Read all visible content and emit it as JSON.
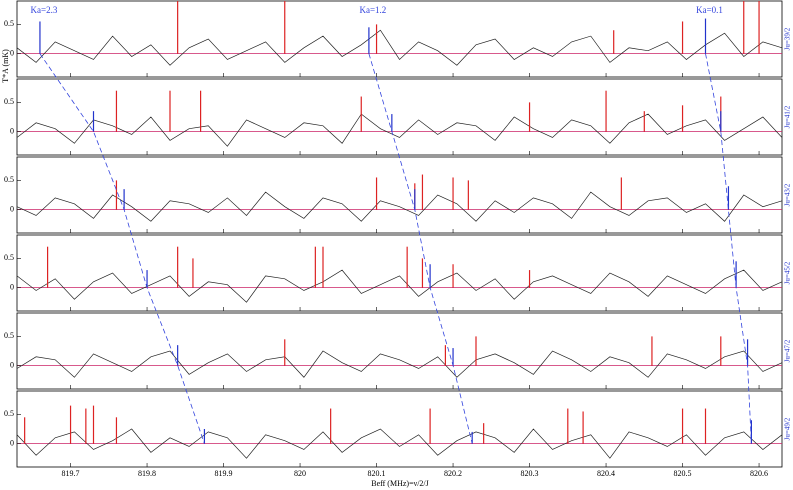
{
  "chart_data": [
    {
      "type": "line",
      "label": "Ju=39/2",
      "xlim": [
        819.63,
        820.63
      ],
      "ylim": [
        -0.4,
        0.9
      ],
      "yticks": [
        0,
        0.5
      ],
      "xticks": [
        819.7,
        819.8,
        819.9,
        820,
        820.1,
        820.2,
        820.3,
        820.4,
        820.5,
        820.6
      ],
      "x": [
        819.63,
        819.655,
        819.68,
        819.705,
        819.73,
        819.755,
        819.78,
        819.805,
        819.83,
        819.855,
        819.88,
        819.905,
        819.93,
        819.955,
        819.98,
        820.005,
        820.03,
        820.055,
        820.08,
        820.105,
        820.13,
        820.155,
        820.18,
        820.205,
        820.23,
        820.255,
        820.28,
        820.305,
        820.33,
        820.355,
        820.38,
        820.405,
        820.43,
        820.455,
        820.48,
        820.505,
        820.53,
        820.555,
        820.58,
        820.605,
        820.63
      ],
      "series": [
        {
          "color": "#222222",
          "values": [
            0.1,
            -0.15,
            0.2,
            0.05,
            -0.1,
            0.3,
            -0.05,
            0.15,
            -0.2,
            0.1,
            0.25,
            -0.1,
            0.05,
            0.2,
            -0.15,
            0.1,
            0.3,
            -0.05,
            0.15,
            0.4,
            -0.1,
            0.2,
            0.05,
            -0.2,
            0.15,
            0.25,
            -0.1,
            0.1,
            -0.05,
            0.2,
            0.3,
            -0.15,
            0.1,
            0.05,
            0.2,
            -0.1,
            0.15,
            0.35,
            -0.05,
            0.2,
            0.1
          ]
        },
        {
          "color": "#dd2222",
          "x": [
            819.84,
            819.98,
            820.1,
            820.41,
            820.5,
            820.58,
            820.6
          ],
          "values": [
            0.9,
            0.9,
            0.5,
            0.4,
            0.55,
            0.9,
            0.9
          ]
        },
        {
          "color": "#2233cc",
          "x": [
            819.66,
            820.09,
            820.53
          ],
          "values": [
            0.55,
            0.45,
            0.6
          ]
        }
      ]
    },
    {
      "type": "line",
      "label": "Ju=41/2",
      "xlim": [
        819.63,
        820.63
      ],
      "ylim": [
        -0.4,
        0.9
      ],
      "yticks": [
        0,
        0.5
      ],
      "xticks": [
        819.7,
        819.8,
        819.9,
        820,
        820.1,
        820.2,
        820.3,
        820.4,
        820.5,
        820.6
      ],
      "x": [
        819.63,
        819.655,
        819.68,
        819.705,
        819.73,
        819.755,
        819.78,
        819.805,
        819.83,
        819.855,
        819.88,
        819.905,
        819.93,
        819.955,
        819.98,
        820.005,
        820.03,
        820.055,
        820.08,
        820.105,
        820.13,
        820.155,
        820.18,
        820.205,
        820.23,
        820.255,
        820.28,
        820.305,
        820.33,
        820.355,
        820.38,
        820.405,
        820.43,
        820.455,
        820.48,
        820.505,
        820.53,
        820.555,
        820.58,
        820.605,
        820.63
      ],
      "series": [
        {
          "color": "#222222",
          "values": [
            -0.1,
            0.15,
            0.05,
            -0.2,
            0.2,
            0.1,
            -0.05,
            0.25,
            -0.15,
            0.05,
            0.1,
            -0.25,
            0.2,
            0.05,
            -0.1,
            0.15,
            0.1,
            -0.2,
            0.3,
            0.05,
            -0.1,
            0.2,
            -0.05,
            0.15,
            0.1,
            -0.15,
            0.25,
            0.05,
            -0.1,
            0.2,
            0.1,
            -0.2,
            0.15,
            0.3,
            -0.05,
            0.1,
            0.2,
            -0.15,
            0.05,
            0.25,
            -0.1
          ]
        },
        {
          "color": "#dd2222",
          "x": [
            819.76,
            819.83,
            819.87,
            820.08,
            820.3,
            820.4,
            820.45,
            820.5,
            820.55
          ],
          "values": [
            0.7,
            0.7,
            0.7,
            0.6,
            0.5,
            0.7,
            0.35,
            0.45,
            0.6
          ]
        },
        {
          "color": "#2233cc",
          "x": [
            819.73,
            820.12,
            820.55
          ],
          "values": [
            0.35,
            0.3,
            0.35
          ]
        }
      ]
    },
    {
      "type": "line",
      "label": "Ju=43/2",
      "xlim": [
        819.63,
        820.63
      ],
      "ylim": [
        -0.4,
        0.9
      ],
      "yticks": [
        0,
        0.5
      ],
      "xticks": [
        819.7,
        819.8,
        819.9,
        820,
        820.1,
        820.2,
        820.3,
        820.4,
        820.5,
        820.6
      ],
      "x": [
        819.63,
        819.655,
        819.68,
        819.705,
        819.73,
        819.755,
        819.78,
        819.805,
        819.83,
        819.855,
        819.88,
        819.905,
        819.93,
        819.955,
        819.98,
        820.005,
        820.03,
        820.055,
        820.08,
        820.105,
        820.13,
        820.155,
        820.18,
        820.205,
        820.23,
        820.255,
        820.28,
        820.305,
        820.33,
        820.355,
        820.38,
        820.405,
        820.43,
        820.455,
        820.48,
        820.505,
        820.53,
        820.555,
        820.58,
        820.605,
        820.63
      ],
      "series": [
        {
          "color": "#222222",
          "values": [
            0.05,
            -0.1,
            0.2,
            0.1,
            -0.15,
            0.25,
            0.05,
            -0.2,
            0.15,
            0.1,
            -0.05,
            0.2,
            -0.1,
            0.3,
            0.05,
            -0.15,
            0.2,
            0.1,
            -0.2,
            0.15,
            0.05,
            -0.1,
            0.25,
            0.1,
            -0.2,
            0.15,
            -0.05,
            0.2,
            0.1,
            -0.15,
            0.3,
            0.05,
            -0.1,
            0.15,
            0.2,
            -0.05,
            0.1,
            -0.2,
            0.25,
            0.05,
            0.15
          ]
        },
        {
          "color": "#dd2222",
          "x": [
            819.76,
            820.1,
            820.15,
            820.16,
            820.2,
            820.22,
            820.42
          ],
          "values": [
            0.5,
            0.55,
            0.45,
            0.6,
            0.55,
            0.5,
            0.55
          ]
        },
        {
          "color": "#2233cc",
          "x": [
            819.77,
            820.15,
            820.56
          ],
          "values": [
            0.35,
            0.35,
            0.4
          ]
        }
      ]
    },
    {
      "type": "line",
      "label": "Ju=45/2",
      "xlim": [
        819.63,
        820.63
      ],
      "ylim": [
        -0.4,
        0.9
      ],
      "yticks": [
        0,
        0.5
      ],
      "xticks": [
        819.7,
        819.8,
        819.9,
        820,
        820.1,
        820.2,
        820.3,
        820.4,
        820.5,
        820.6
      ],
      "x": [
        819.63,
        819.655,
        819.68,
        819.705,
        819.73,
        819.755,
        819.78,
        819.805,
        819.83,
        819.855,
        819.88,
        819.905,
        819.93,
        819.955,
        819.98,
        820.005,
        820.03,
        820.055,
        820.08,
        820.105,
        820.13,
        820.155,
        820.18,
        820.205,
        820.23,
        820.255,
        820.28,
        820.305,
        820.33,
        820.355,
        820.38,
        820.405,
        820.43,
        820.455,
        820.48,
        820.505,
        820.53,
        820.555,
        820.58,
        820.605,
        820.63
      ],
      "series": [
        {
          "color": "#222222",
          "values": [
            0.2,
            -0.05,
            0.15,
            -0.2,
            0.1,
            0.25,
            -0.1,
            0.05,
            0.2,
            -0.15,
            0.1,
            0.05,
            -0.25,
            0.2,
            0.15,
            -0.05,
            0.1,
            0.3,
            -0.1,
            0.05,
            0.2,
            -0.15,
            0.1,
            0.25,
            -0.05,
            0.15,
            -0.2,
            0.1,
            0.2,
            0.05,
            -0.1,
            0.25,
            0.1,
            -0.15,
            0.2,
            0.05,
            -0.1,
            0.15,
            0.3,
            -0.05,
            0.1
          ]
        },
        {
          "color": "#dd2222",
          "x": [
            819.67,
            819.84,
            819.86,
            820.02,
            820.03,
            820.14,
            820.16,
            820.2,
            820.3
          ],
          "values": [
            0.7,
            0.7,
            0.5,
            0.7,
            0.7,
            0.7,
            0.5,
            0.4,
            0.3
          ]
        },
        {
          "color": "#2233cc",
          "x": [
            819.8,
            820.17,
            820.57
          ],
          "values": [
            0.3,
            0.4,
            0.45
          ]
        }
      ]
    },
    {
      "type": "line",
      "label": "Ju=47/2",
      "xlim": [
        819.63,
        820.63
      ],
      "ylim": [
        -0.4,
        0.9
      ],
      "yticks": [
        0,
        0.5
      ],
      "xticks": [
        819.7,
        819.8,
        819.9,
        820,
        820.1,
        820.2,
        820.3,
        820.4,
        820.5,
        820.6
      ],
      "x": [
        819.63,
        819.655,
        819.68,
        819.705,
        819.73,
        819.755,
        819.78,
        819.805,
        819.83,
        819.855,
        819.88,
        819.905,
        819.93,
        819.955,
        819.98,
        820.005,
        820.03,
        820.055,
        820.08,
        820.105,
        820.13,
        820.155,
        820.18,
        820.205,
        820.23,
        820.255,
        820.28,
        820.305,
        820.33,
        820.355,
        820.38,
        820.405,
        820.43,
        820.455,
        820.48,
        820.505,
        820.53,
        820.555,
        820.58,
        820.605,
        820.63
      ],
      "series": [
        {
          "color": "#222222",
          "values": [
            -0.05,
            0.15,
            0.1,
            -0.2,
            0.2,
            0.05,
            -0.1,
            0.15,
            0.25,
            -0.15,
            0.05,
            0.2,
            -0.1,
            0.1,
            0.15,
            -0.2,
            0.25,
            0.05,
            -0.1,
            0.2,
            0.1,
            -0.05,
            0.15,
            -0.2,
            0.1,
            0.2,
            0.05,
            -0.15,
            0.25,
            0.1,
            -0.1,
            0.15,
            0.05,
            -0.2,
            0.2,
            0.1,
            -0.05,
            0.15,
            0.25,
            -0.1,
            0.05
          ]
        },
        {
          "color": "#dd2222",
          "x": [
            819.98,
            820.19,
            820.23,
            820.46,
            820.55
          ],
          "values": [
            0.45,
            0.35,
            0.5,
            0.5,
            0.5
          ]
        },
        {
          "color": "#2233cc",
          "x": [
            819.84,
            820.2,
            820.585
          ],
          "values": [
            0.35,
            0.3,
            0.45
          ]
        }
      ]
    },
    {
      "type": "line",
      "label": "Ju=49/2",
      "xlim": [
        819.63,
        820.63
      ],
      "ylim": [
        -0.4,
        0.9
      ],
      "yticks": [
        0,
        0.5
      ],
      "xticks": [
        819.7,
        819.8,
        819.9,
        820,
        820.1,
        820.2,
        820.3,
        820.4,
        820.5,
        820.6
      ],
      "x": [
        819.63,
        819.655,
        819.68,
        819.705,
        819.73,
        819.755,
        819.78,
        819.805,
        819.83,
        819.855,
        819.88,
        819.905,
        819.93,
        819.955,
        819.98,
        820.005,
        820.03,
        820.055,
        820.08,
        820.105,
        820.13,
        820.155,
        820.18,
        820.205,
        820.23,
        820.255,
        820.28,
        820.305,
        820.33,
        820.355,
        820.38,
        820.405,
        820.43,
        820.455,
        820.48,
        820.505,
        820.53,
        820.555,
        820.58,
        820.605,
        820.63
      ],
      "series": [
        {
          "color": "#222222",
          "values": [
            0.15,
            -0.2,
            0.1,
            0.2,
            -0.1,
            0.05,
            0.25,
            -0.15,
            0.1,
            -0.05,
            0.2,
            0.1,
            -0.25,
            0.15,
            0.05,
            -0.1,
            0.2,
            -0.15,
            0.1,
            0.25,
            -0.05,
            0.15,
            -0.2,
            0.05,
            0.2,
            0.1,
            -0.15,
            0.25,
            -0.1,
            0.05,
            0.15,
            -0.25,
            0.2,
            0.1,
            -0.05,
            0.15,
            -0.2,
            0.1,
            0.2,
            -0.1,
            0.15
          ]
        },
        {
          "color": "#dd2222",
          "x": [
            819.64,
            819.7,
            819.72,
            819.73,
            819.76,
            820.04,
            820.17,
            820.24,
            820.35,
            820.37,
            820.5,
            820.53
          ],
          "values": [
            0.45,
            0.65,
            0.6,
            0.65,
            0.45,
            0.6,
            0.6,
            0.35,
            0.6,
            0.55,
            0.6,
            0.6
          ]
        },
        {
          "color": "#2233cc",
          "x": [
            819.875,
            820.225,
            820.59
          ],
          "values": [
            0.25,
            0.2,
            0.4
          ]
        }
      ]
    }
  ],
  "xlabel": "Beff (MHz)=ν/2/J",
  "ylabel": "T*A (mK)",
  "tracks": [
    {
      "label": "Ka=2.3",
      "color": "#3344dd",
      "x": [
        819.66,
        819.73,
        819.77,
        819.8,
        819.84,
        819.875
      ]
    },
    {
      "label": "Ka=1.2",
      "color": "#3344dd",
      "x": [
        820.09,
        820.12,
        820.15,
        820.17,
        820.2,
        820.225
      ]
    },
    {
      "label": "Ka=0.1",
      "color": "#3344dd",
      "x": [
        820.53,
        820.55,
        820.56,
        820.57,
        820.585,
        820.59
      ]
    }
  ]
}
